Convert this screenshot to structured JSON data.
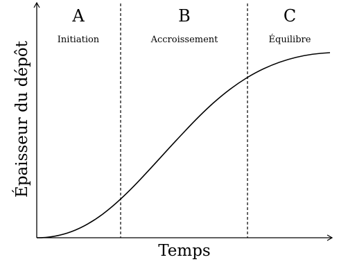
{
  "axes": {
    "y_label": "Épaisseur du dépôt",
    "x_label": "Temps"
  },
  "phases": [
    {
      "letter": "A",
      "name": "Initiation"
    },
    {
      "letter": "B",
      "name": "Accroissement"
    },
    {
      "letter": "C",
      "name": "Équilibre"
    }
  ]
}
